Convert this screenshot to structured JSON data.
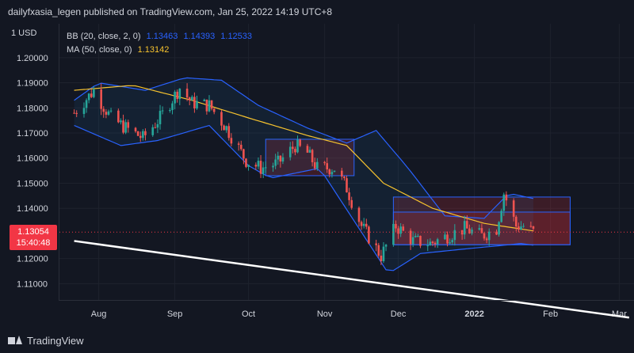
{
  "header": {
    "text": "dailyfxasia_legen published on TradingView.com, Jan 25, 2022 14:19 UTC+8"
  },
  "symbol": {
    "currency_label": "1 USD"
  },
  "legend": {
    "bb_label": "BB (20, close, 2, 0)",
    "bb_values": [
      "1.13463",
      "1.14393",
      "1.12533"
    ],
    "ma_label": "MA (50, close, 0)",
    "ma_value": "1.13142"
  },
  "price_tag": {
    "price": "1.13054",
    "countdown": "15:40:48"
  },
  "footer": {
    "brand": "TradingView"
  },
  "colors": {
    "background": "#131722",
    "bull": "#26a69a",
    "bear": "#ef5350",
    "bollinger": "#2962ff",
    "moving_average": "#f7c32e",
    "trendline": "#ffffff",
    "box_fill": "#f2364533",
    "box_border": "#2962ff"
  },
  "chart_data": {
    "type": "candlestick",
    "title": "",
    "y_ticks": [
      "1.20000",
      "1.19000",
      "1.18000",
      "1.17000",
      "1.16000",
      "1.15000",
      "1.14000",
      "1.12000",
      "1.11000"
    ],
    "x_ticks": [
      "Aug",
      "Sep",
      "Oct",
      "Nov",
      "Dec",
      "2022",
      "Feb",
      "Mar"
    ],
    "ylim": [
      1.1035,
      1.2135
    ],
    "x_tick_dates": [
      "2021-08-01",
      "2021-09-01",
      "2021-10-01",
      "2021-11-01",
      "2021-12-01",
      "2022-01-01",
      "2022-02-01",
      "2022-03-01"
    ],
    "close_path": [
      [
        "2021-07-22",
        1.178
      ],
      [
        "2021-07-30",
        1.187
      ],
      [
        "2021-08-06",
        1.176
      ],
      [
        "2021-08-12",
        1.172
      ],
      [
        "2021-08-19",
        1.168
      ],
      [
        "2021-08-26",
        1.176
      ],
      [
        "2021-09-03",
        1.188
      ],
      [
        "2021-09-08",
        1.182
      ],
      [
        "2021-09-15",
        1.181
      ],
      [
        "2021-09-22",
        1.172
      ],
      [
        "2021-09-30",
        1.159
      ],
      [
        "2021-10-06",
        1.156
      ],
      [
        "2021-10-13",
        1.158
      ],
      [
        "2021-10-20",
        1.165
      ],
      [
        "2021-10-25",
        1.162
      ],
      [
        "2021-10-29",
        1.156
      ],
      [
        "2021-11-05",
        1.156
      ],
      [
        "2021-11-10",
        1.148
      ],
      [
        "2021-11-16",
        1.133
      ],
      [
        "2021-11-24",
        1.121
      ],
      [
        "2021-11-30",
        1.133
      ],
      [
        "2021-12-07",
        1.127
      ],
      [
        "2021-12-14",
        1.126
      ],
      [
        "2021-12-21",
        1.129
      ],
      [
        "2021-12-28",
        1.132
      ],
      [
        "2022-01-04",
        1.129
      ],
      [
        "2022-01-10",
        1.132
      ],
      [
        "2022-01-13",
        1.146
      ],
      [
        "2022-01-18",
        1.133
      ],
      [
        "2022-01-21",
        1.133
      ],
      [
        "2022-01-25",
        1.1305
      ]
    ],
    "ma50": [
      [
        "2021-07-22",
        1.187
      ],
      [
        "2021-08-15",
        1.189
      ],
      [
        "2021-09-08",
        1.183
      ],
      [
        "2021-10-01",
        1.176
      ],
      [
        "2021-10-25",
        1.169
      ],
      [
        "2021-11-10",
        1.165
      ],
      [
        "2021-11-25",
        1.15
      ],
      [
        "2021-12-15",
        1.14
      ],
      [
        "2022-01-05",
        1.134
      ],
      [
        "2022-01-25",
        1.131
      ]
    ],
    "bb_upper": [
      [
        "2021-07-22",
        1.183
      ],
      [
        "2021-08-01",
        1.19
      ],
      [
        "2021-08-20",
        1.187
      ],
      [
        "2021-09-05",
        1.192
      ],
      [
        "2021-09-20",
        1.191
      ],
      [
        "2021-10-05",
        1.181
      ],
      [
        "2021-10-25",
        1.172
      ],
      [
        "2021-11-10",
        1.166
      ],
      [
        "2021-11-22",
        1.171
      ],
      [
        "2021-12-05",
        1.156
      ],
      [
        "2021-12-20",
        1.137
      ],
      [
        "2022-01-05",
        1.136
      ],
      [
        "2022-01-15",
        1.146
      ],
      [
        "2022-01-25",
        1.1439
      ]
    ],
    "bb_lower": [
      [
        "2021-07-22",
        1.173
      ],
      [
        "2021-08-10",
        1.165
      ],
      [
        "2021-08-25",
        1.167
      ],
      [
        "2021-09-15",
        1.173
      ],
      [
        "2021-10-01",
        1.157
      ],
      [
        "2021-10-10",
        1.152
      ],
      [
        "2021-10-30",
        1.156
      ],
      [
        "2021-11-15",
        1.132
      ],
      [
        "2021-11-27",
        1.114
      ],
      [
        "2021-12-10",
        1.122
      ],
      [
        "2021-12-30",
        1.124
      ],
      [
        "2022-01-10",
        1.125
      ],
      [
        "2022-01-20",
        1.126
      ],
      [
        "2022-01-25",
        1.1253
      ]
    ],
    "trendline": [
      [
        "2021-07-22",
        1.127
      ],
      [
        "2022-03-05",
        1.0965
      ]
    ],
    "boxes": [
      {
        "from": "2021-10-08",
        "to": "2021-11-13",
        "high": 1.1675,
        "low": 1.153
      },
      {
        "from": "2021-11-29",
        "to": "2022-02-09",
        "high": 1.1445,
        "low": 1.1255
      },
      {
        "from": "2021-11-29",
        "to": "2022-02-09",
        "high": 1.1385,
        "low": 1.1255
      }
    ],
    "last_price": 1.13054
  }
}
